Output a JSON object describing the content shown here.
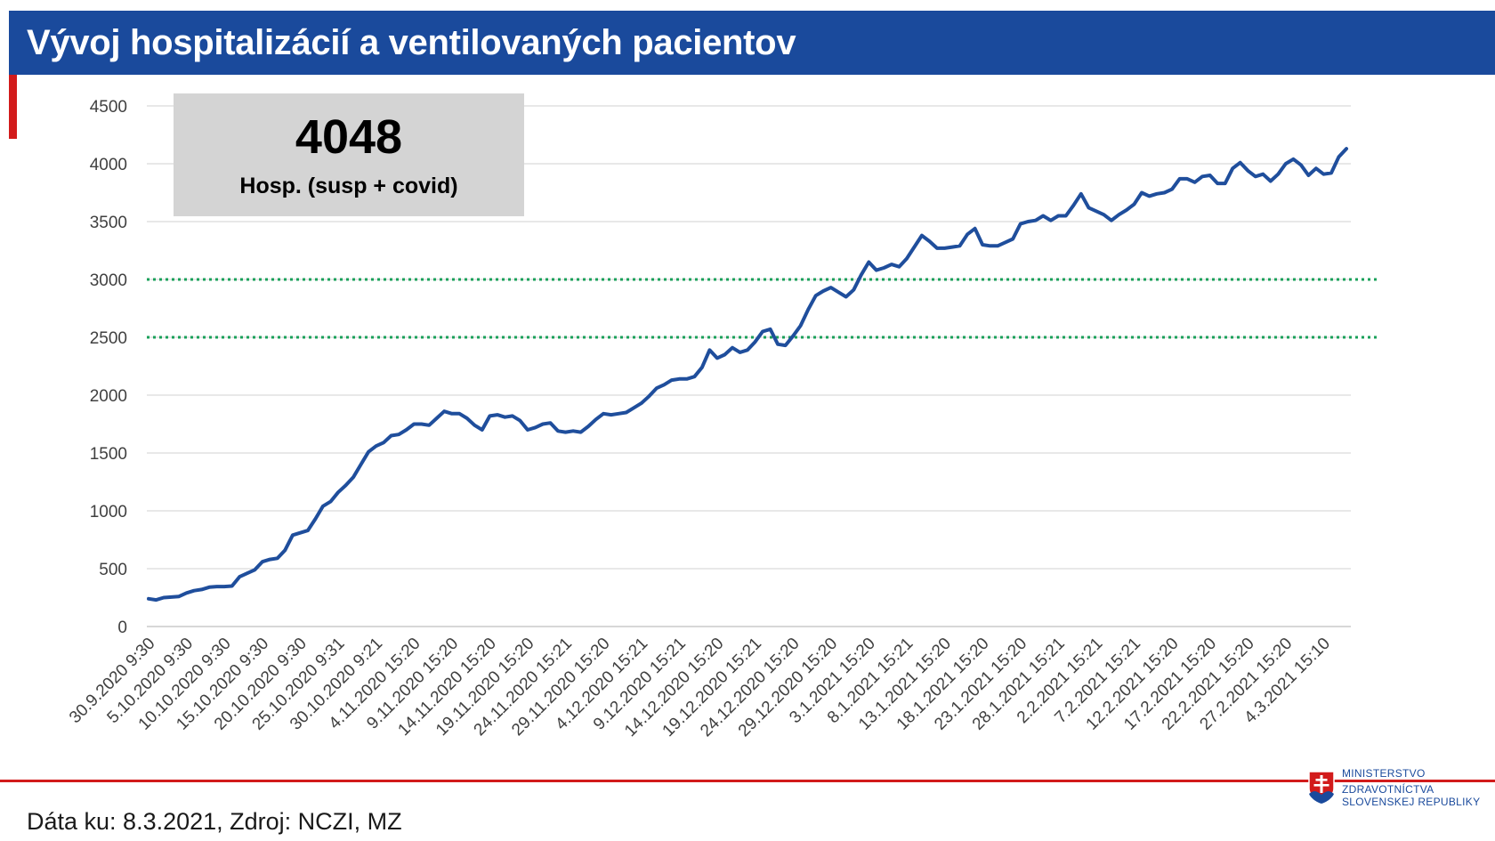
{
  "header": {
    "title": "Vývoj hospitalizácií a ventilovaných pacientov"
  },
  "kpi": {
    "value": "4048",
    "label": "Hosp. (susp + covid)"
  },
  "footer": {
    "source": "Dáta ku: 8.3.2021, Zdroj: NCZI, MZ"
  },
  "logo": {
    "line1": "MINISTERSTVO",
    "line2": "ZDRAVOTNÍCTVA",
    "line3": "SLOVENSKEJ REPUBLIKY"
  },
  "colors": {
    "title_bar": "#1a4a9c",
    "accent_red": "#d21b1b",
    "series": "#1f4e9c",
    "threshold": "#1aa05a",
    "grid": "#d9d9d9"
  },
  "chart_data": {
    "type": "line",
    "title": "Vývoj hospitalizácií a ventilovaných pacientov",
    "ylim": [
      0,
      4500
    ],
    "yticks": [
      0,
      500,
      1000,
      1500,
      2000,
      2500,
      3000,
      3500,
      4000,
      4500
    ],
    "grid": true,
    "xtick_labels": [
      "30.9.2020 9:30",
      "5.10.2020 9:30",
      "10.10.2020 9:30",
      "15.10.2020 9:30",
      "20.10.2020 9:30",
      "25.10.2020 9:31",
      "30.10.2020 9:21",
      "4.11.2020 15:20",
      "9.11.2020 15:20",
      "14.11.2020 15:20",
      "19.11.2020 15:20",
      "24.11.2020 15:21",
      "29.11.2020 15:20",
      "4.12.2020 15:21",
      "9.12.2020 15:21",
      "14.12.2020 15:20",
      "19.12.2020 15:21",
      "24.12.2020 15:20",
      "29.12.2020 15:20",
      "3.1.2021 15:20",
      "8.1.2021 15:21",
      "13.1.2021 15:20",
      "18.1.2021 15:20",
      "23.1.2021 15:20",
      "28.1.2021 15:21",
      "2.2.2021 15:21",
      "7.2.2021 15:21",
      "12.2.2021 15:20",
      "17.2.2021 15:20",
      "22.2.2021 15:20",
      "27.2.2021 15:20",
      "4.3.2021 15:10"
    ],
    "thresholds": [
      2500,
      3000
    ],
    "series": [
      {
        "values": [
          240,
          230,
          250,
          255,
          260,
          290,
          310,
          320,
          340,
          345,
          345,
          350,
          430,
          460,
          490,
          560,
          580,
          590,
          660,
          790,
          810,
          830,
          930,
          1040,
          1080,
          1160,
          1220,
          1290,
          1400,
          1510,
          1560,
          1590,
          1650,
          1660,
          1700,
          1750,
          1750,
          1740,
          1800,
          1860,
          1840,
          1840,
          1800,
          1740,
          1700,
          1820,
          1830,
          1810,
          1820,
          1780,
          1700,
          1720,
          1750,
          1760,
          1690,
          1680,
          1690,
          1680,
          1730,
          1790,
          1840,
          1830,
          1840,
          1850,
          1890,
          1930,
          1990,
          2060,
          2090,
          2130,
          2140,
          2140,
          2160,
          2240,
          2390,
          2320,
          2350,
          2410,
          2370,
          2390,
          2460,
          2550,
          2570,
          2440,
          2430,
          2510,
          2600,
          2740,
          2860,
          2900,
          2930,
          2890,
          2850,
          2910,
          3040,
          3150,
          3080,
          3100,
          3130,
          3110,
          3180,
          3280,
          3380,
          3330,
          3270,
          3270,
          3280,
          3290,
          3390,
          3440,
          3300,
          3290,
          3290,
          3320,
          3350,
          3480,
          3500,
          3510,
          3550,
          3510,
          3550,
          3550,
          3640,
          3740,
          3620,
          3590,
          3560,
          3510,
          3560,
          3600,
          3650,
          3750,
          3720,
          3740,
          3750,
          3780,
          3870,
          3870,
          3840,
          3890,
          3900,
          3830,
          3830,
          3960,
          4010,
          3940,
          3890,
          3910,
          3850,
          3910,
          4000,
          4040,
          3990,
          3900,
          3960,
          3910,
          3920,
          4060,
          4130
        ]
      }
    ]
  }
}
